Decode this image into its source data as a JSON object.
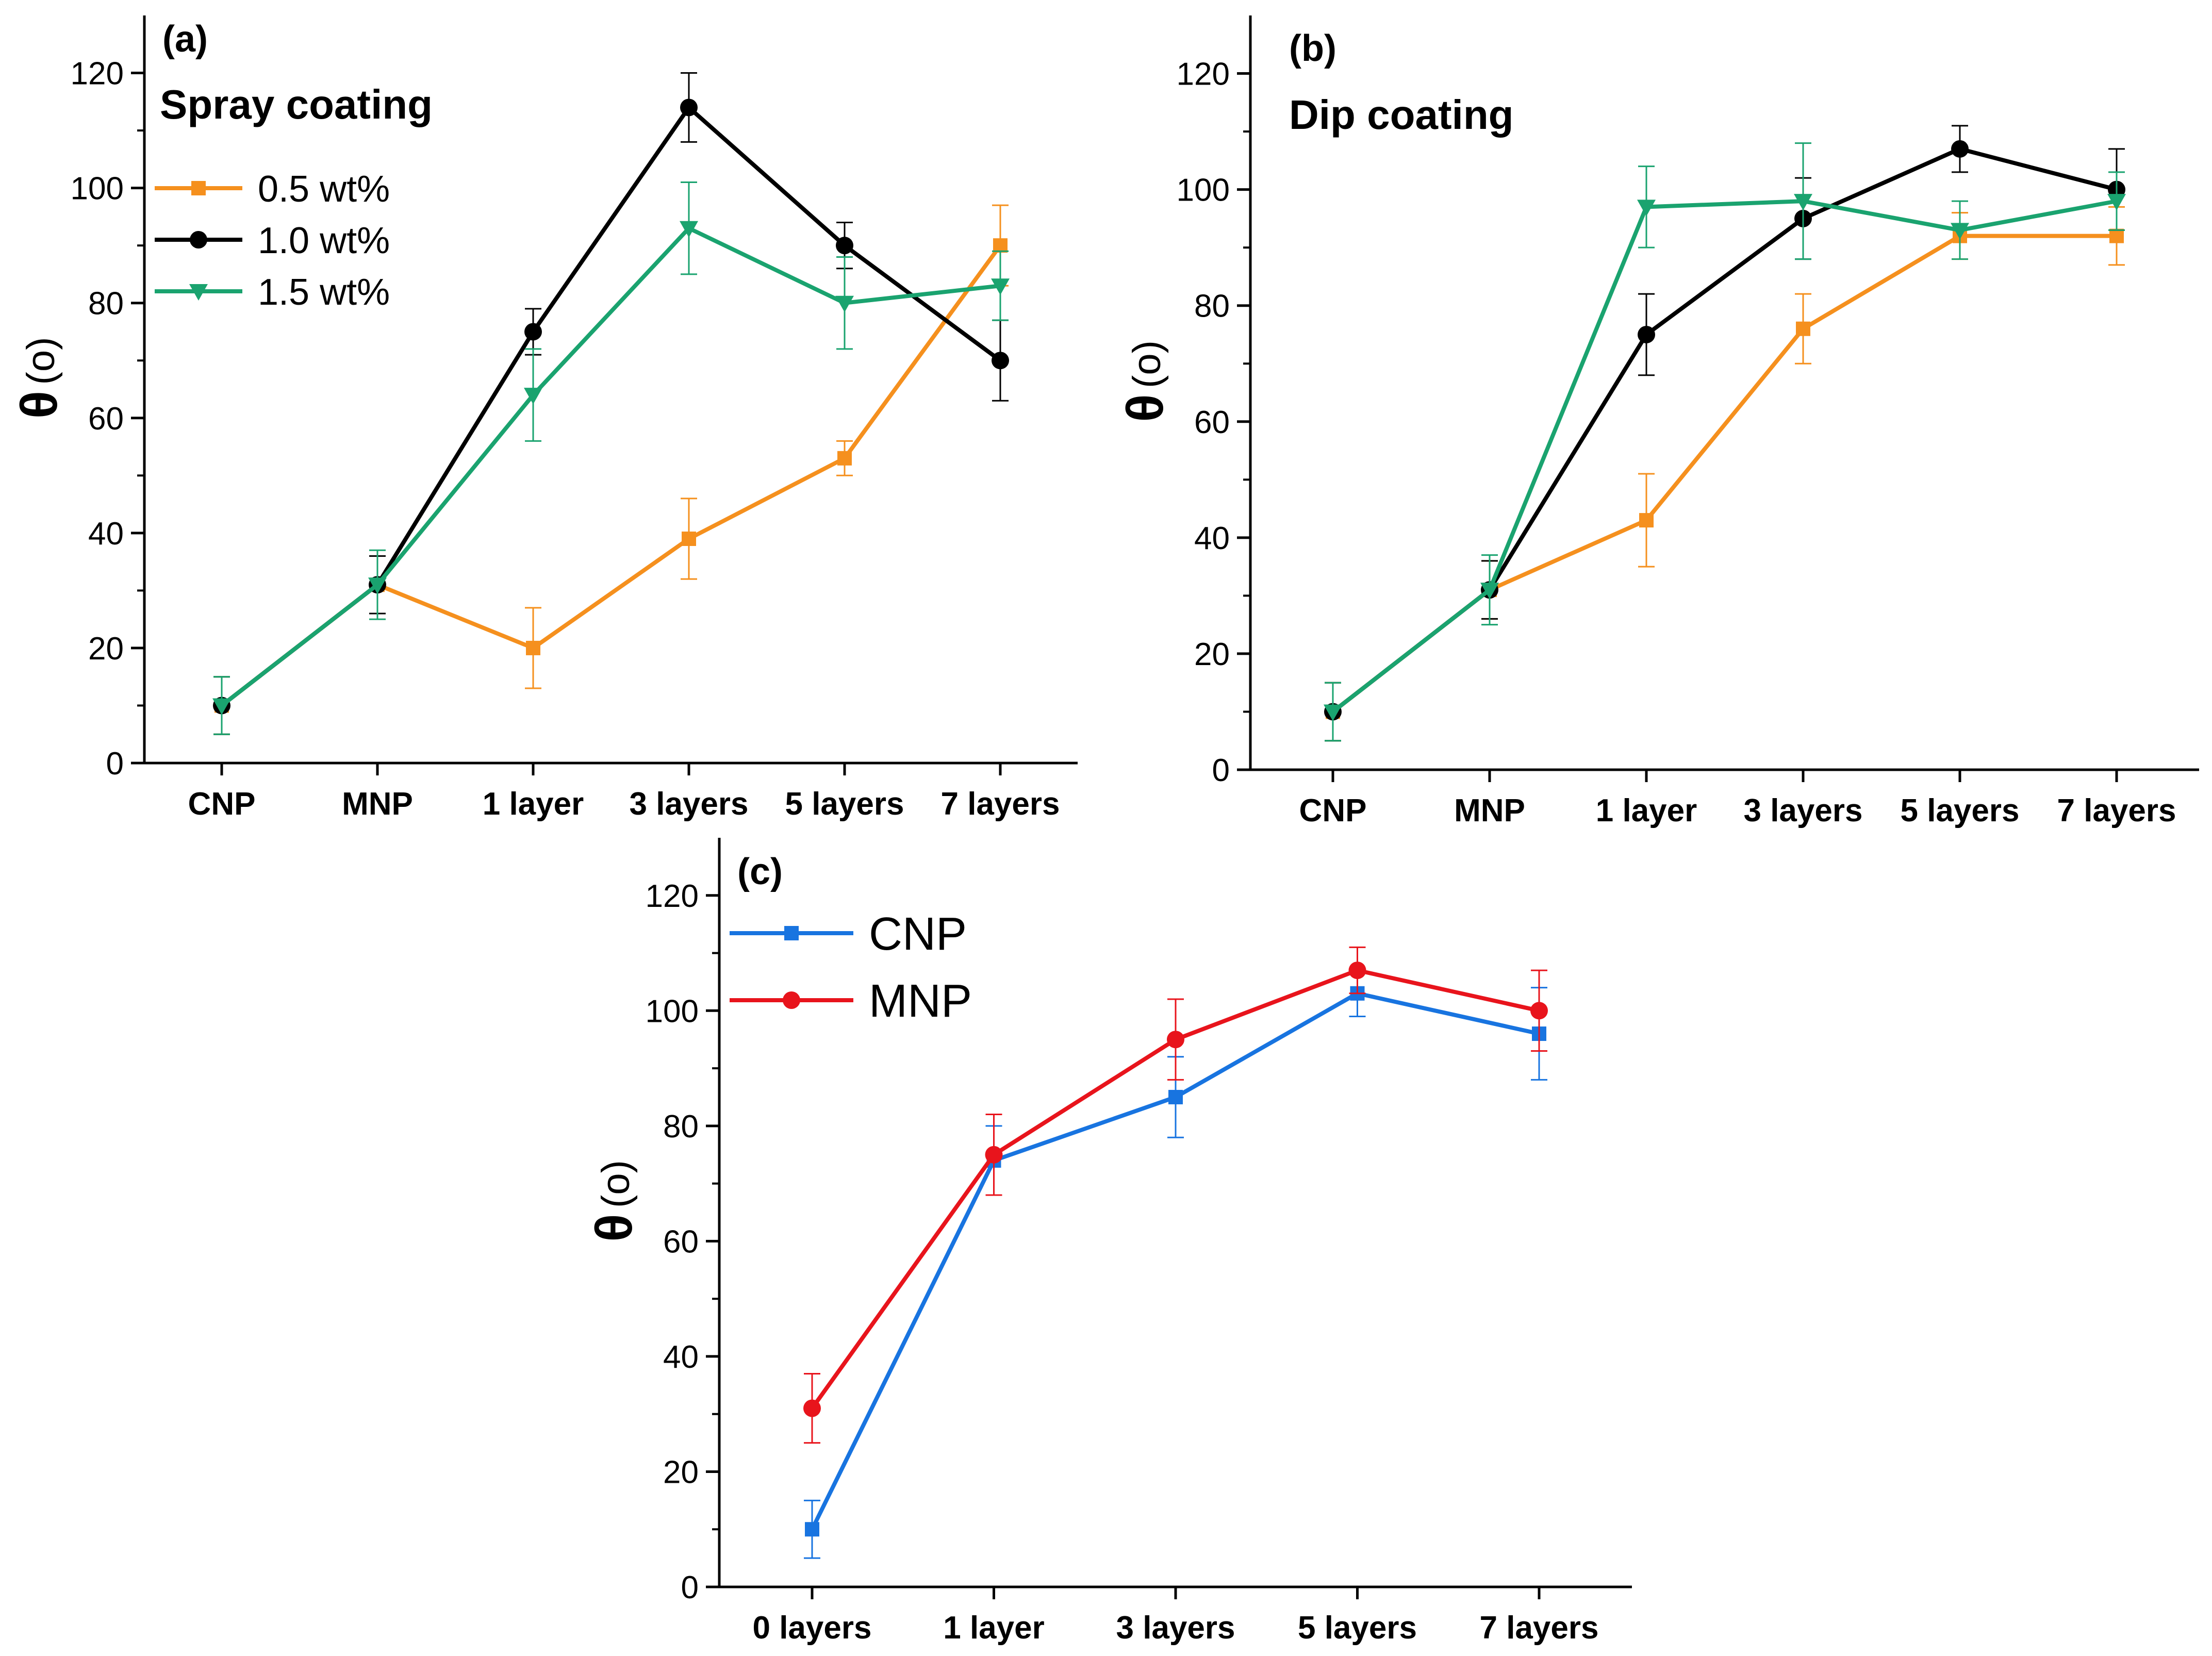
{
  "chart_data": [
    {
      "id": "a",
      "type": "line",
      "panel_label": "(a)",
      "title": "Spray coating",
      "ylabel": "θ",
      "ylabel_unit": "(o)",
      "xlabel": "",
      "ylim": [
        0,
        130
      ],
      "yticks": [
        0,
        20,
        40,
        60,
        80,
        100,
        120
      ],
      "categories": [
        "CNP",
        "MNP",
        "1 layer",
        "3 layers",
        "5 layers",
        "7 layers"
      ],
      "legend_position": "top-left",
      "series": [
        {
          "name": "0.5 wt%",
          "color": "#F5901E",
          "marker": "square",
          "values": [
            10,
            31,
            20,
            39,
            53,
            90
          ],
          "errors": [
            5,
            5,
            7,
            7,
            3,
            7
          ]
        },
        {
          "name": "1.0 wt%",
          "color": "#000000",
          "marker": "circle",
          "values": [
            10,
            31,
            75,
            114,
            90,
            70
          ],
          "errors": [
            5,
            5,
            4,
            6,
            4,
            7
          ]
        },
        {
          "name": "1.5 wt%",
          "color": "#1AA36F",
          "marker": "triangle-down",
          "values": [
            10,
            31,
            64,
            93,
            80,
            83
          ],
          "errors": [
            5,
            6,
            8,
            8,
            8,
            6
          ]
        }
      ]
    },
    {
      "id": "b",
      "type": "line",
      "panel_label": "(b)",
      "title": "Dip coating",
      "ylabel": "θ",
      "ylabel_unit": "(o)",
      "xlabel": "",
      "ylim": [
        0,
        130
      ],
      "yticks": [
        0,
        20,
        40,
        60,
        80,
        100,
        120
      ],
      "categories": [
        "CNP",
        "MNP",
        "1 layer",
        "3 layers",
        "5 layers",
        "7 layers"
      ],
      "legend_position": "none",
      "series": [
        {
          "name": "0.5 wt%",
          "color": "#F5901E",
          "marker": "square",
          "values": [
            10,
            31,
            43,
            76,
            92,
            92
          ],
          "errors": [
            5,
            5,
            8,
            6,
            4,
            5
          ]
        },
        {
          "name": "1.0 wt%",
          "color": "#000000",
          "marker": "circle",
          "values": [
            10,
            31,
            75,
            95,
            107,
            100
          ],
          "errors": [
            5,
            5,
            7,
            7,
            4,
            7
          ]
        },
        {
          "name": "1.5 wt%",
          "color": "#1AA36F",
          "marker": "triangle-down",
          "values": [
            10,
            31,
            97,
            98,
            93,
            98
          ],
          "errors": [
            5,
            6,
            7,
            10,
            5,
            5
          ]
        }
      ]
    },
    {
      "id": "c",
      "type": "line",
      "panel_label": "(c)",
      "title": "",
      "ylabel": "θ",
      "ylabel_unit": "(o)",
      "xlabel": "",
      "ylim": [
        0,
        130
      ],
      "yticks": [
        0,
        20,
        40,
        60,
        80,
        100,
        120
      ],
      "categories": [
        "0 layers",
        "1 layer",
        "3 layers",
        "5 layers",
        "7 layers"
      ],
      "legend_position": "top-left",
      "series": [
        {
          "name": "CNP",
          "color": "#1874E0",
          "marker": "square",
          "values": [
            10,
            74,
            85,
            103,
            96
          ],
          "errors": [
            5,
            6,
            7,
            4,
            8
          ]
        },
        {
          "name": "MNP",
          "color": "#E8141C",
          "marker": "circle",
          "values": [
            31,
            75,
            95,
            107,
            100
          ],
          "errors": [
            6,
            7,
            7,
            4,
            7
          ]
        }
      ]
    }
  ]
}
